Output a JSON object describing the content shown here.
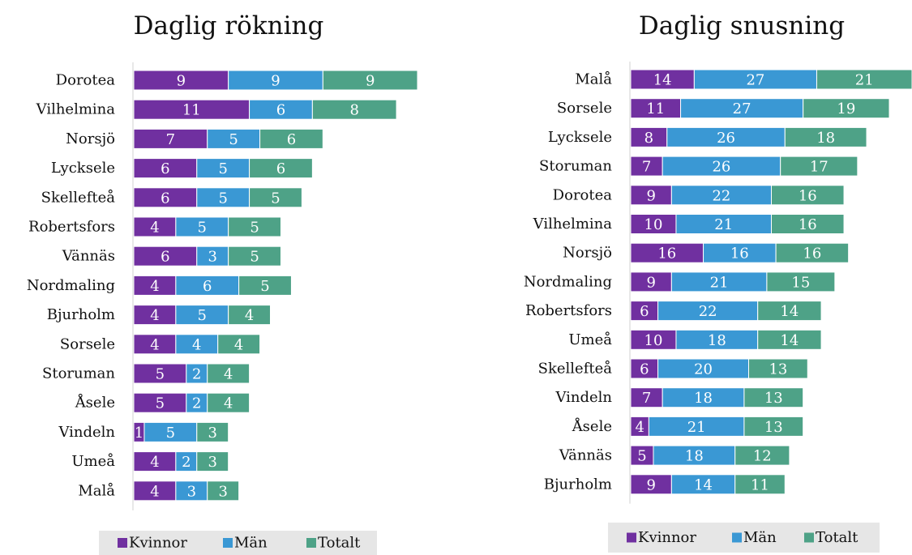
{
  "chart_data": [
    {
      "type": "stacked-bar",
      "orientation": "horizontal",
      "title": "Daglig rökning",
      "categories": [
        "Dorotea",
        "Vilhelmina",
        "Norsjö",
        "Lycksele",
        "Skellefteå",
        "Robertsfors",
        "Vännäs",
        "Nordmaling",
        "Bjurholm",
        "Sorsele",
        "Storuman",
        "Åsele",
        "Vindeln",
        "Umeå",
        "Malå"
      ],
      "series": [
        {
          "name": "Kvinnor",
          "color": "#7030a0",
          "values": [
            9,
            11,
            7,
            6,
            6,
            4,
            6,
            4,
            4,
            4,
            5,
            5,
            1,
            4,
            4
          ]
        },
        {
          "name": "Män",
          "color": "#3a98d4",
          "values": [
            9,
            6,
            5,
            5,
            5,
            5,
            3,
            6,
            5,
            4,
            2,
            2,
            5,
            2,
            3
          ]
        },
        {
          "name": "Totalt",
          "color": "#4ea287",
          "values": [
            9,
            8,
            6,
            6,
            5,
            5,
            5,
            5,
            4,
            4,
            4,
            4,
            3,
            3,
            3
          ]
        }
      ],
      "legend": "bottom"
    },
    {
      "type": "stacked-bar",
      "orientation": "horizontal",
      "title": "Daglig snusning",
      "categories": [
        "Malå",
        "Sorsele",
        "Lycksele",
        "Storuman",
        "Dorotea",
        "Vilhelmina",
        "Norsjö",
        "Nordmaling",
        "Robertsfors",
        "Umeå",
        "Skellefteå",
        "Vindeln",
        "Åsele",
        "Vännäs",
        "Bjurholm"
      ],
      "series": [
        {
          "name": "Kvinnor",
          "color": "#7030a0",
          "values": [
            14,
            11,
            8,
            7,
            9,
            10,
            16,
            9,
            6,
            10,
            6,
            7,
            4,
            5,
            9
          ]
        },
        {
          "name": "Män",
          "color": "#3a98d4",
          "values": [
            27,
            27,
            26,
            26,
            22,
            21,
            16,
            21,
            22,
            18,
            20,
            18,
            21,
            18,
            14
          ]
        },
        {
          "name": "Totalt",
          "color": "#4ea287",
          "values": [
            21,
            19,
            18,
            17,
            16,
            16,
            16,
            15,
            14,
            14,
            13,
            13,
            13,
            12,
            11
          ]
        }
      ],
      "legend": "bottom"
    }
  ]
}
